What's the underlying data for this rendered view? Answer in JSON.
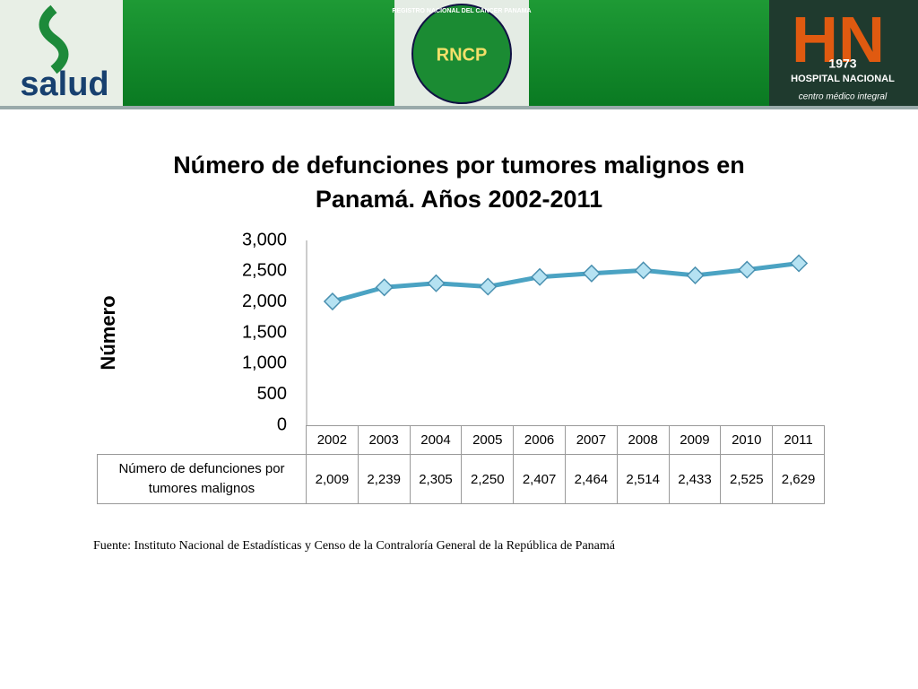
{
  "logos": {
    "salud": "salud",
    "rncp": "RNCP",
    "rncp_ring": "REGISTRO NACIONAL DEL CANCER PANAMA",
    "hn": "HN",
    "year": "1973",
    "hospital": "HOSPITAL NACIONAL",
    "tagline": "centro médico integral"
  },
  "chart_data": {
    "type": "line",
    "title": "Número de defunciones por tumores malignos en Panamá. Años 2002-2011",
    "y_label": "Número",
    "categories": [
      "2002",
      "2003",
      "2004",
      "2005",
      "2006",
      "2007",
      "2008",
      "2009",
      "2010",
      "2011"
    ],
    "series": [
      {
        "name": "Número de defunciones por tumores malignos",
        "color": "#4ba3c3",
        "values": [
          2009,
          2239,
          2305,
          2250,
          2407,
          2464,
          2514,
          2433,
          2525,
          2629
        ],
        "value_labels": [
          "2,009",
          "2,239",
          "2,305",
          "2,250",
          "2,407",
          "2,464",
          "2,514",
          "2,433",
          "2,525",
          "2,629"
        ]
      }
    ],
    "ylim": [
      0,
      3000
    ],
    "yticks": [
      0,
      500,
      {
        "value": 1000,
        "label": "1,000"
      },
      {
        "value": 1500,
        "label": "1,500"
      },
      {
        "value": 2000,
        "label": "2,000"
      },
      {
        "value": 2500,
        "label": "2,500"
      },
      {
        "value": 3000,
        "label": "3,000"
      }
    ],
    "grid": false,
    "source": "Fuente: Instituto Nacional de Estadísticas y Censo de la Contraloría General de la República de Panamá"
  }
}
